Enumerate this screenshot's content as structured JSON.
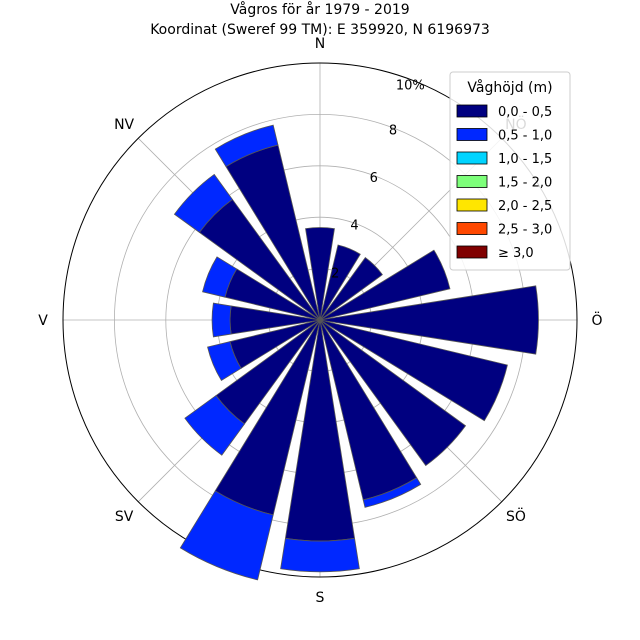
{
  "chart_data": {
    "type": "windrose",
    "title_line1": "Vågros för år 1979 - 2019",
    "title_line2": "Koordinat (Sweref 99 TM): E 359920, N 6196973",
    "directions": [
      "N",
      "NV",
      "V",
      "SV",
      "S",
      "SÖ",
      "Ö",
      "NÖ"
    ],
    "direction_angles_deg": [
      0,
      315,
      270,
      225,
      180,
      135,
      90,
      45
    ],
    "radial_ticks": [
      2,
      4,
      6,
      8
    ],
    "radial_max_label": "10%",
    "rmax": 10,
    "grid": true,
    "legend": {
      "title": "Våghöjd (m)",
      "placement": "top-right",
      "items": [
        {
          "label": "0,0 - 0,5",
          "color": "#000080"
        },
        {
          "label": "0,5 - 1,0",
          "color": "#0028ff"
        },
        {
          "label": "1,0 - 1,5",
          "color": "#00d4ff"
        },
        {
          "label": "1,5 - 2,0",
          "color": "#7dff7a"
        },
        {
          "label": "2,0 - 2,5",
          "color": "#ffe600"
        },
        {
          "label": "2,5 - 3,0",
          "color": "#ff4800"
        },
        {
          "label": "≥ 3,0",
          "color": "#800000"
        }
      ]
    },
    "sector_width_deg": 18,
    "sectors": [
      {
        "dir_deg": 0,
        "values": [
          3.6
        ]
      },
      {
        "dir_deg": 22.5,
        "values": [
          3.0
        ]
      },
      {
        "dir_deg": 45,
        "values": [
          3.0
        ]
      },
      {
        "dir_deg": 67.5,
        "values": [
          5.2
        ]
      },
      {
        "dir_deg": 90,
        "values": [
          8.5
        ]
      },
      {
        "dir_deg": 112.5,
        "values": [
          7.5
        ]
      },
      {
        "dir_deg": 135,
        "values": [
          7.0
        ]
      },
      {
        "dir_deg": 157.5,
        "values": [
          7.2,
          0.3
        ]
      },
      {
        "dir_deg": 180,
        "values": [
          8.6,
          1.2
        ]
      },
      {
        "dir_deg": 202.5,
        "values": [
          7.8,
          2.6
        ]
      },
      {
        "dir_deg": 225,
        "values": [
          5.0,
          1.5
        ]
      },
      {
        "dir_deg": 247.5,
        "values": [
          3.6,
          0.9
        ]
      },
      {
        "dir_deg": 270,
        "values": [
          3.5,
          0.7
        ]
      },
      {
        "dir_deg": 292.5,
        "values": [
          3.8,
          0.9
        ]
      },
      {
        "dir_deg": 315,
        "values": [
          5.8,
          1.2
        ]
      },
      {
        "dir_deg": 337.5,
        "values": [
          7.0,
          0.8
        ]
      }
    ]
  }
}
